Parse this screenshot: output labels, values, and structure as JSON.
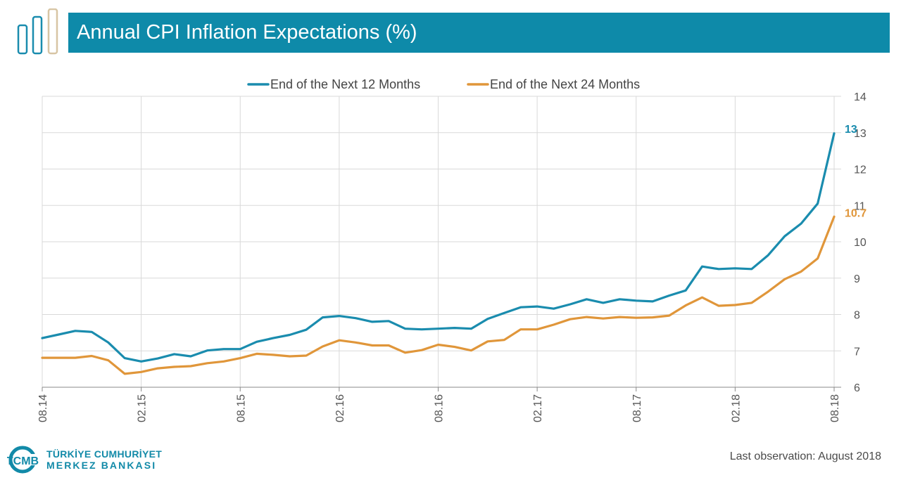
{
  "title": "Annual CPI Inflation Expectations (%)",
  "footer": {
    "bank_line1": "TÜRKİYE CUMHURİYET",
    "bank_line2": "MERKEZ BANKASI",
    "bank_logo_text": "TCMB",
    "last_observation": "Last observation: August 2018"
  },
  "colors": {
    "header": "#0e8aa9",
    "series_12m": "#1a8cae",
    "series_24m": "#e0963a",
    "grid": "#d9d9d9"
  },
  "chart_data": {
    "type": "line",
    "title": "",
    "xlabel": "",
    "ylabel": "",
    "y_axis_side": "right",
    "ylim": [
      6,
      14
    ],
    "yticks": [
      "6",
      "7",
      "8",
      "9",
      "10",
      "11",
      "12",
      "13",
      "14"
    ],
    "x_tick_labels": [
      "08.14",
      "02.15",
      "08.15",
      "02.16",
      "08.16",
      "02.17",
      "08.17",
      "02.18",
      "08.18"
    ],
    "x_tick_positions": [
      0,
      6,
      12,
      18,
      24,
      30,
      36,
      42,
      48
    ],
    "grid": "vertical at x ticks, horizontal at y ticks",
    "legend_position": "top-center",
    "x": [
      "2014-08",
      "2014-09",
      "2014-10",
      "2014-11",
      "2014-12",
      "2015-01",
      "2015-02",
      "2015-03",
      "2015-04",
      "2015-05",
      "2015-06",
      "2015-07",
      "2015-08",
      "2015-09",
      "2015-10",
      "2015-11",
      "2015-12",
      "2016-01",
      "2016-02",
      "2016-03",
      "2016-04",
      "2016-05",
      "2016-06",
      "2016-07",
      "2016-08",
      "2016-09",
      "2016-10",
      "2016-11",
      "2016-12",
      "2017-01",
      "2017-02",
      "2017-03",
      "2017-04",
      "2017-05",
      "2017-06",
      "2017-07",
      "2017-08",
      "2017-09",
      "2017-10",
      "2017-11",
      "2017-12",
      "2018-01",
      "2018-02",
      "2018-03",
      "2018-04",
      "2018-05",
      "2018-06",
      "2018-07",
      "2018-08"
    ],
    "series": [
      {
        "name": "End of the Next 12 Months",
        "color": "#1a8cae",
        "end_label": "13",
        "values": [
          7.35,
          7.45,
          7.55,
          7.52,
          7.23,
          6.8,
          6.71,
          6.79,
          6.91,
          6.85,
          7.01,
          7.05,
          7.05,
          7.25,
          7.35,
          7.44,
          7.58,
          7.92,
          7.96,
          7.9,
          7.8,
          7.82,
          7.61,
          7.59,
          7.61,
          7.63,
          7.61,
          7.88,
          8.04,
          8.2,
          8.22,
          8.16,
          8.28,
          8.42,
          8.32,
          8.42,
          8.38,
          8.36,
          8.52,
          8.66,
          9.32,
          9.25,
          9.27,
          9.25,
          9.63,
          10.15,
          10.5,
          11.05,
          12.98
        ]
      },
      {
        "name": "End of the Next 24 Months",
        "color": "#e0963a",
        "end_label": "10.7",
        "values": [
          6.81,
          6.81,
          6.81,
          6.86,
          6.74,
          6.37,
          6.42,
          6.52,
          6.56,
          6.58,
          6.66,
          6.71,
          6.8,
          6.92,
          6.89,
          6.85,
          6.87,
          7.12,
          7.29,
          7.23,
          7.15,
          7.15,
          6.95,
          7.02,
          7.17,
          7.11,
          7.01,
          7.26,
          7.3,
          7.59,
          7.59,
          7.72,
          7.87,
          7.93,
          7.89,
          7.93,
          7.91,
          7.92,
          7.97,
          8.25,
          8.47,
          8.24,
          8.26,
          8.32,
          8.63,
          8.97,
          9.18,
          9.54,
          10.69
        ]
      }
    ]
  }
}
